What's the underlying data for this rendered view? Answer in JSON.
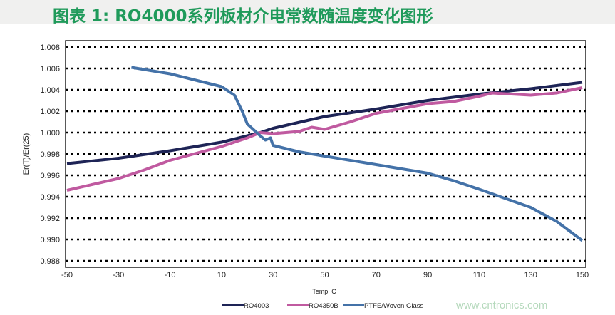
{
  "title": "图表 1: RO4000系列板材介电常数随温度变化图形",
  "watermark": "www.cntronics.com",
  "chart_data": {
    "type": "line",
    "title": "",
    "xlabel": "Temp, C",
    "ylabel": "Er(T)/Er(25)",
    "xlim": [
      -50,
      150
    ],
    "ylim": [
      0.988,
      1.008
    ],
    "xticks": [
      -50,
      -30,
      -10,
      10,
      30,
      50,
      70,
      90,
      110,
      130,
      150
    ],
    "yticks": [
      "1.008",
      "1.006",
      "1.004",
      "1.002",
      "1.000",
      "0.998",
      "0.996",
      "0.994",
      "0.992",
      "0.990",
      "0.988"
    ],
    "grid": "horizontal dotted",
    "legend": "bottom",
    "series": [
      {
        "name": "RO4003",
        "color": "#1e2456",
        "x": [
          -50,
          -30,
          -10,
          10,
          25,
          30,
          50,
          70,
          90,
          110,
          130,
          150
        ],
        "y": [
          0.9971,
          0.9976,
          0.9983,
          0.9991,
          1.0,
          1.0004,
          1.0015,
          1.0022,
          1.003,
          1.0036,
          1.0041,
          1.0047
        ]
      },
      {
        "name": "RO4350B",
        "color": "#c05aa0",
        "x": [
          -50,
          -30,
          -20,
          -10,
          10,
          20,
          25,
          30,
          40,
          45,
          50,
          60,
          70,
          90,
          100,
          110,
          115,
          130,
          140,
          150
        ],
        "y": [
          0.9946,
          0.9957,
          0.9965,
          0.9974,
          0.9987,
          0.9995,
          1.0,
          0.9999,
          1.0001,
          1.0005,
          1.0003,
          1.001,
          1.0018,
          1.0027,
          1.0029,
          1.0034,
          1.0037,
          1.0035,
          1.0037,
          1.0042
        ]
      },
      {
        "name": "PTFE/Woven Glass",
        "color": "#4472a8",
        "x": [
          -25,
          -10,
          0,
          10,
          15,
          18,
          20,
          25,
          27,
          29,
          30,
          40,
          50,
          70,
          90,
          100,
          110,
          130,
          140,
          150
        ],
        "y": [
          1.0061,
          1.0055,
          1.0049,
          1.0043,
          1.0035,
          1.002,
          1.0008,
          0.9997,
          0.9993,
          0.9995,
          0.9988,
          0.9982,
          0.9978,
          0.997,
          0.9962,
          0.9955,
          0.9947,
          0.993,
          0.9917,
          0.9899
        ]
      }
    ]
  }
}
